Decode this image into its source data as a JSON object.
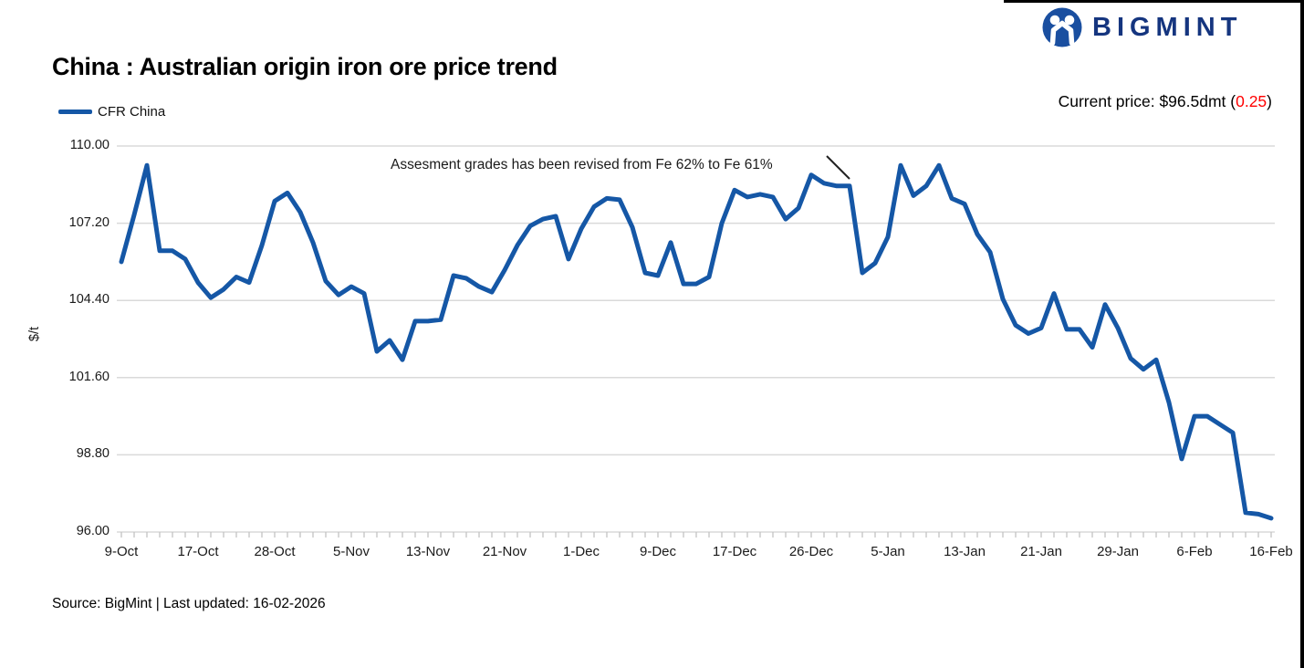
{
  "header": {
    "brand": {
      "name": "BIGMINT",
      "text_color": "#15357f",
      "icon_color": "#1a4fa0"
    },
    "title": "China : Australian origin iron ore price trend",
    "current_price": {
      "prefix": "Current price: $96.5dmt (",
      "change": "0.25",
      "suffix": ")",
      "change_color": "#ff0000"
    }
  },
  "legend": {
    "series_label": "CFR China"
  },
  "annotation": {
    "text": "Assesment grades has been revised from Fe 62% to Fe 61%"
  },
  "footer": {
    "source": "Source: BigMint | Last updated: 16-02-2026"
  },
  "chart_data": {
    "type": "line",
    "title": "China : Australian origin iron ore price trend",
    "xlabel": "",
    "ylabel": "$/t",
    "ylim": [
      96.0,
      110.0
    ],
    "ytick_labels": [
      "110.00",
      "107.20",
      "104.40",
      "101.60",
      "98.80",
      "96.00"
    ],
    "grid": "horizontal",
    "legend_position": "top-left",
    "line_color": "#1557a6",
    "grid_color": "#dadada",
    "tick_color": "#c4c4c4",
    "x_tick_labels": [
      "9-Oct",
      "17-Oct",
      "28-Oct",
      "5-Nov",
      "13-Nov",
      "21-Nov",
      "1-Dec",
      "9-Dec",
      "17-Dec",
      "26-Dec",
      "5-Jan",
      "13-Jan",
      "21-Jan",
      "29-Jan",
      "6-Feb",
      "16-Feb"
    ],
    "label_every_n_points": 6,
    "series": [
      {
        "name": "CFR China",
        "values": [
          105.8,
          107.5,
          109.3,
          106.2,
          106.2,
          105.9,
          105.05,
          104.5,
          104.8,
          105.25,
          105.05,
          106.4,
          108.0,
          108.3,
          107.6,
          106.5,
          105.1,
          104.6,
          104.9,
          104.65,
          102.55,
          102.95,
          102.25,
          103.65,
          103.65,
          103.7,
          105.3,
          105.2,
          104.9,
          104.7,
          105.5,
          106.4,
          107.1,
          107.35,
          107.45,
          105.9,
          107.0,
          107.8,
          108.1,
          108.05,
          107.05,
          105.4,
          105.3,
          106.5,
          105.0,
          105.0,
          105.25,
          107.2,
          108.4,
          108.15,
          108.25,
          108.15,
          107.35,
          107.75,
          108.95,
          108.65,
          108.55,
          108.55,
          105.4,
          105.75,
          106.7,
          109.3,
          108.2,
          108.55,
          109.3,
          108.1,
          107.9,
          106.8,
          106.15,
          104.45,
          103.5,
          103.2,
          103.4,
          104.65,
          103.35,
          103.35,
          102.7,
          104.25,
          103.4,
          102.3,
          101.9,
          102.25,
          100.7,
          98.65,
          100.2,
          100.2,
          99.9,
          99.6,
          96.7,
          96.65,
          96.5
        ]
      }
    ],
    "annotation_text": "Assesment grades has been revised from Fe 62% to Fe 61%"
  }
}
